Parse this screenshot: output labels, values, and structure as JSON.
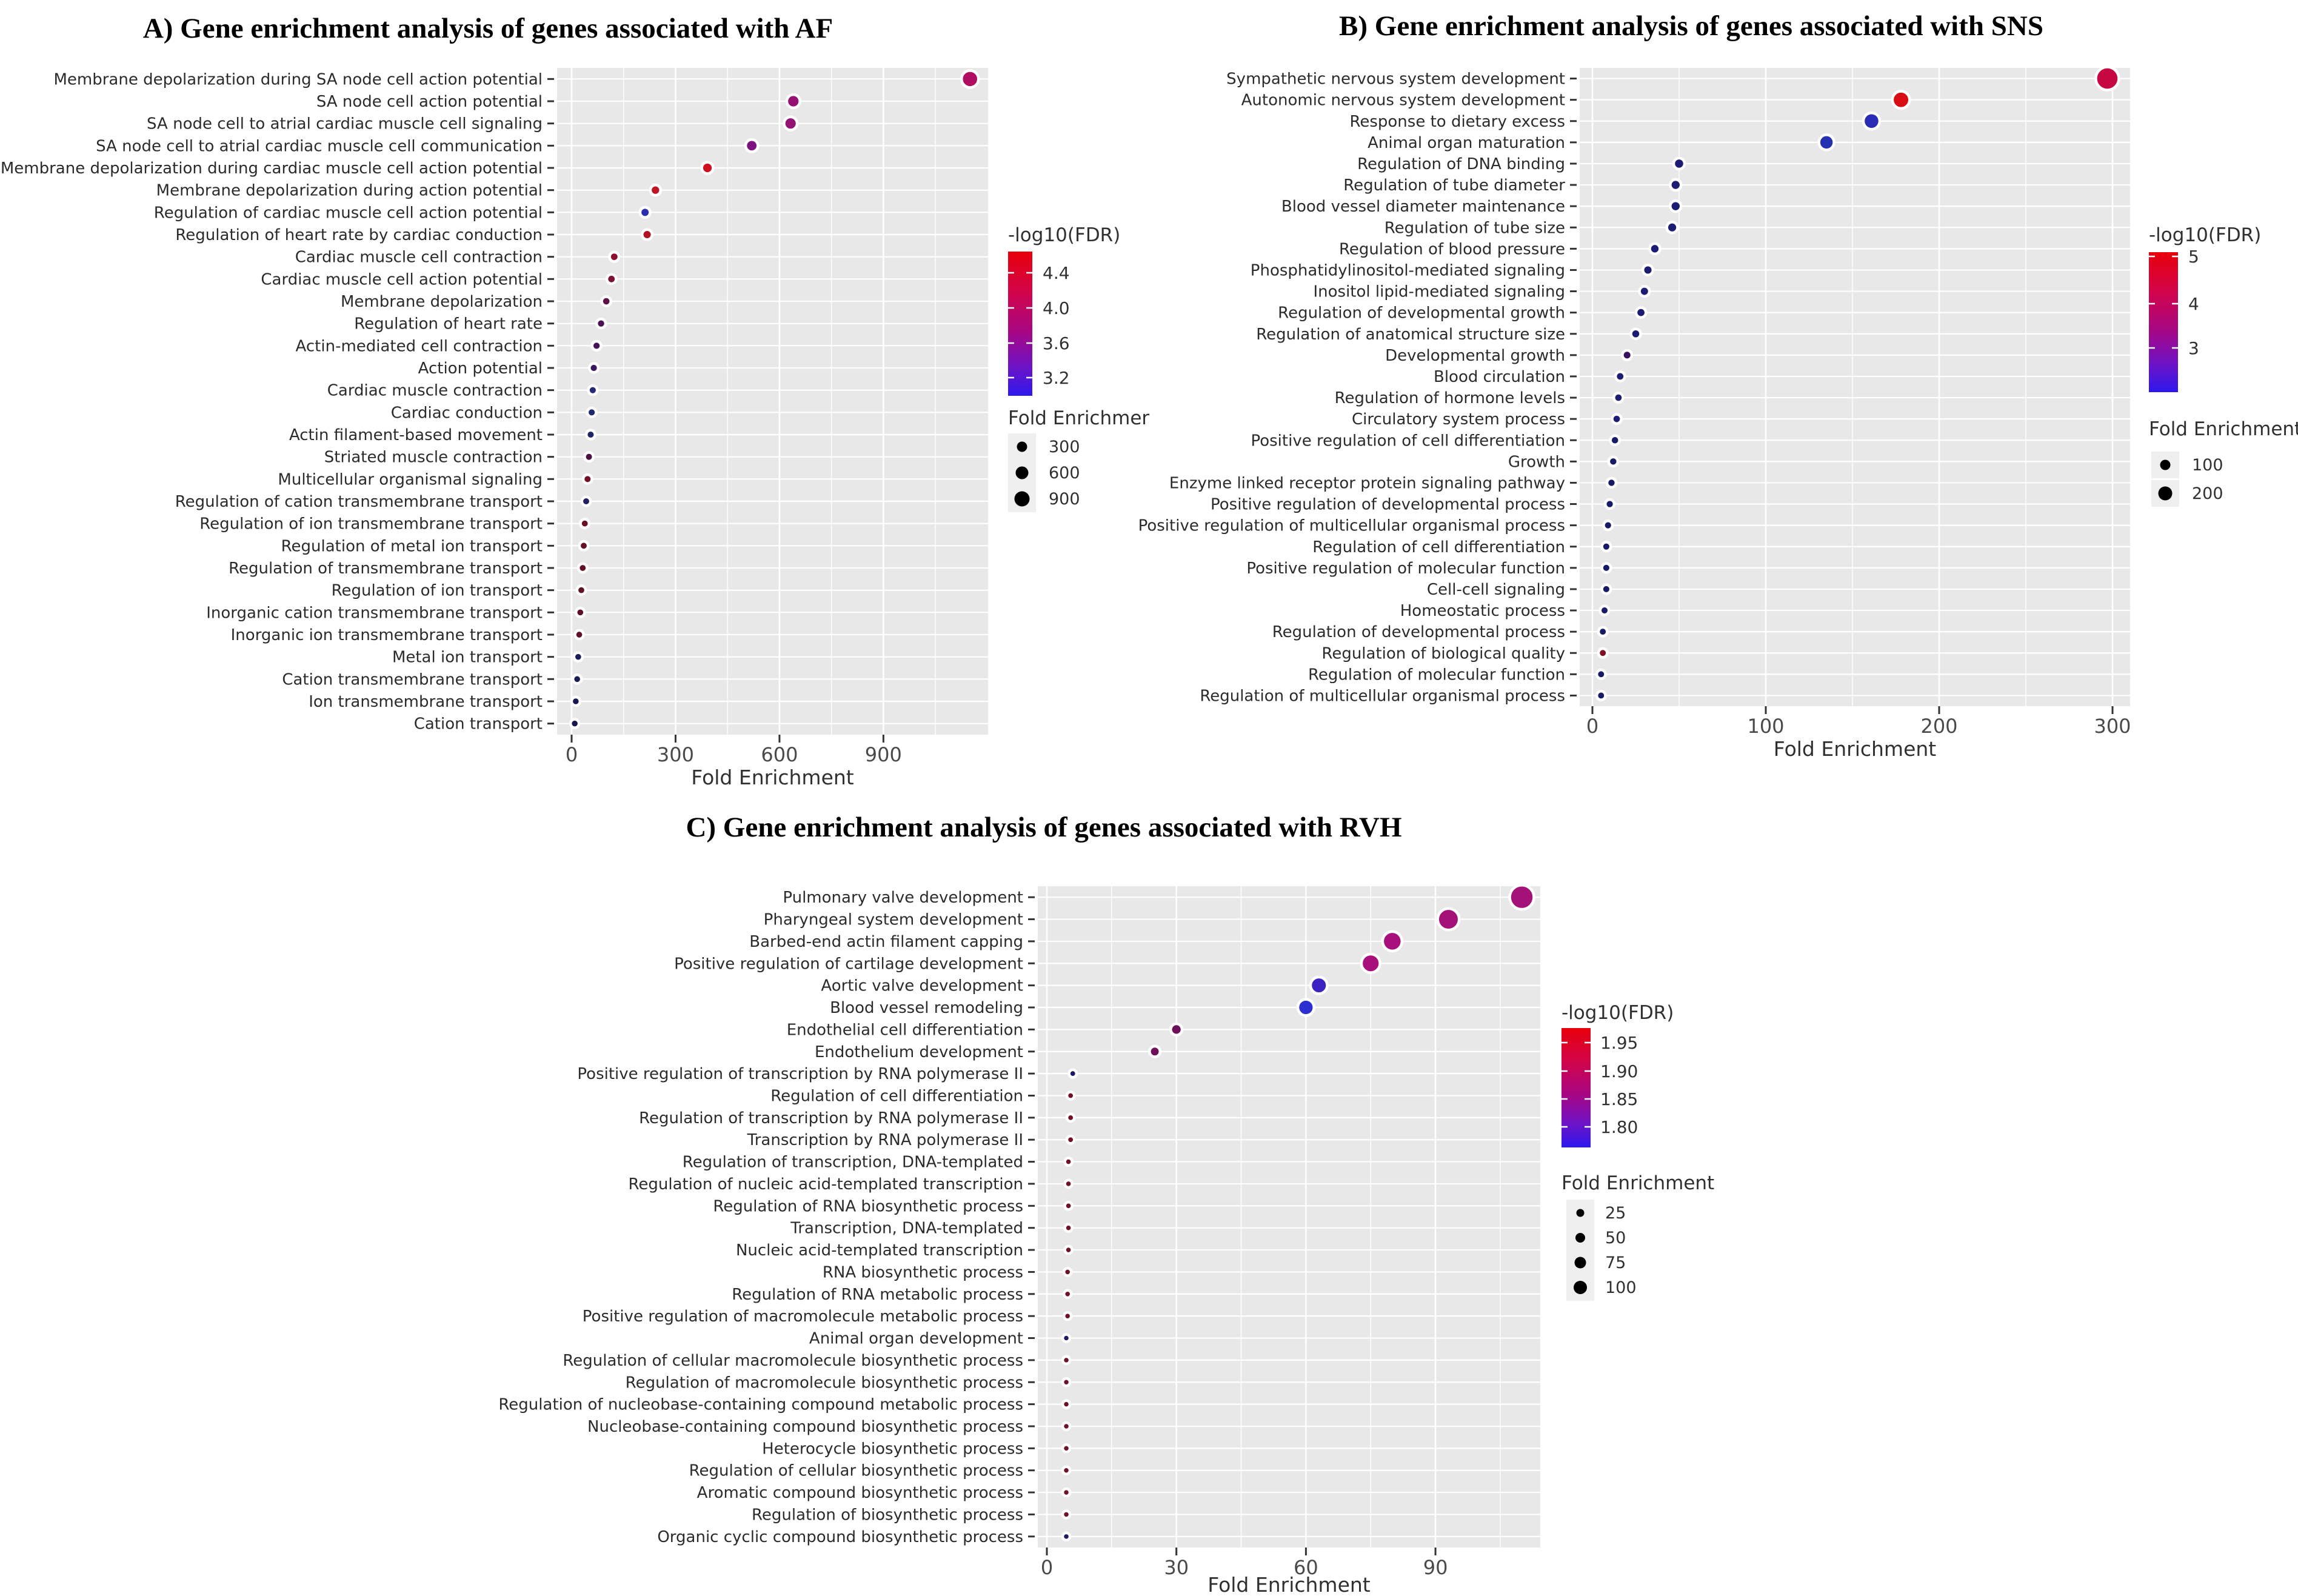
{
  "figure": {
    "description": "Three-panel gene enrichment dot plot figure",
    "background": "#ffffff",
    "plot_background": "#e8e8e8",
    "gridline_color": "#ffffff",
    "colorbar_gradient": [
      "#e8000a",
      "#d2044a",
      "#a80682",
      "#6d13c6",
      "#2d18ee"
    ]
  },
  "chart_data": [
    {
      "type": "scatter",
      "panel": "A",
      "title": "A) Gene enrichment analysis of genes associated with AF",
      "xlabel": "Fold Enrichment",
      "x_ticks": [
        "0",
        "300",
        "600",
        "900"
      ],
      "x_tick_values": [
        0,
        300,
        600,
        900
      ],
      "xlim": [
        0,
        1200
      ],
      "grid": true,
      "legend_colorbar": {
        "title": "-log10(FDR)",
        "ticks": [
          "4.4",
          "4.0",
          "3.6",
          "3.2"
        ]
      },
      "legend_size": {
        "title": "Fold Enrichmer",
        "items": [
          "300",
          "600",
          "900"
        ]
      },
      "points": [
        {
          "label": "Membrane depolarization during SA node cell action potential",
          "fold_enrichment": 1150,
          "color": "#b00d62"
        },
        {
          "label": "SA node cell action potential",
          "fold_enrichment": 640,
          "color": "#951173"
        },
        {
          "label": "SA node cell to atrial cardiac muscle cell signaling",
          "fold_enrichment": 632,
          "color": "#951173"
        },
        {
          "label": "SA node cell to atrial cardiac muscle cell communication",
          "fold_enrichment": 520,
          "color": "#7e1380"
        },
        {
          "label": "Membrane depolarization during cardiac muscle cell action potential",
          "fold_enrichment": 392,
          "color": "#d01020"
        },
        {
          "label": "Membrane depolarization during action potential",
          "fold_enrichment": 242,
          "color": "#c11322"
        },
        {
          "label": "Regulation of cardiac muscle cell action potential",
          "fold_enrichment": 212,
          "color": "#2b2fae"
        },
        {
          "label": "Regulation of heart rate by cardiac conduction",
          "fold_enrichment": 218,
          "color": "#b31222"
        },
        {
          "label": "Cardiac muscle cell contraction",
          "fold_enrichment": 123,
          "color": "#8c102e"
        },
        {
          "label": "Cardiac muscle cell action potential",
          "fold_enrichment": 115,
          "color": "#7c1038"
        },
        {
          "label": "Membrane depolarization",
          "fold_enrichment": 100,
          "color": "#5e1048"
        },
        {
          "label": "Regulation of heart rate",
          "fold_enrichment": 85,
          "color": "#4c1254"
        },
        {
          "label": "Actin-mediated cell contraction",
          "fold_enrichment": 72,
          "color": "#441458"
        },
        {
          "label": "Action potential",
          "fold_enrichment": 64,
          "color": "#3a1560"
        },
        {
          "label": "Cardiac muscle contraction",
          "fold_enrichment": 61,
          "color": "#252a78"
        },
        {
          "label": "Cardiac conduction",
          "fold_enrichment": 58,
          "color": "#20286e"
        },
        {
          "label": "Actin filament-based movement",
          "fold_enrichment": 55,
          "color": "#1e2566"
        },
        {
          "label": "Striated muscle contraction",
          "fold_enrichment": 50,
          "color": "#4e1042"
        },
        {
          "label": "Multicellular organismal signaling",
          "fold_enrichment": 46,
          "color": "#6e1026"
        },
        {
          "label": "Regulation of cation transmembrane transport",
          "fold_enrichment": 42,
          "color": "#232060"
        },
        {
          "label": "Regulation of ion transmembrane transport",
          "fold_enrichment": 38,
          "color": "#681024"
        },
        {
          "label": "Regulation of metal ion transport",
          "fold_enrichment": 35,
          "color": "#661024"
        },
        {
          "label": "Regulation of transmembrane transport",
          "fold_enrichment": 32,
          "color": "#641024"
        },
        {
          "label": "Regulation of ion transport",
          "fold_enrichment": 28,
          "color": "#621024"
        },
        {
          "label": "Inorganic cation transmembrane transport",
          "fold_enrichment": 25,
          "color": "#601026"
        },
        {
          "label": "Inorganic ion transmembrane transport",
          "fold_enrichment": 22,
          "color": "#5e1028"
        },
        {
          "label": "Metal ion transport",
          "fold_enrichment": 19,
          "color": "#1a1e58"
        },
        {
          "label": "Cation transmembrane transport",
          "fold_enrichment": 16,
          "color": "#191c54"
        },
        {
          "label": "Ion transmembrane transport",
          "fold_enrichment": 12,
          "color": "#17194e"
        },
        {
          "label": "Cation transport",
          "fold_enrichment": 9,
          "color": "#15174a"
        }
      ]
    },
    {
      "type": "scatter",
      "panel": "B",
      "title": "B) Gene enrichment analysis of genes associated with SNS",
      "xlabel": "Fold Enrichment",
      "x_ticks": [
        "0",
        "100",
        "200",
        "300"
      ],
      "x_tick_values": [
        0,
        100,
        200,
        300
      ],
      "xlim": [
        0,
        310
      ],
      "grid": true,
      "legend_colorbar": {
        "title": "-log10(FDR)",
        "ticks": [
          "5",
          "4",
          "3"
        ]
      },
      "legend_size": {
        "title": "Fold Enrichment",
        "items": [
          "100",
          "200"
        ]
      },
      "points": [
        {
          "label": "Sympathetic nervous system development",
          "fold_enrichment": 297,
          "color": "#c70742"
        },
        {
          "label": "Autonomic nervous system development",
          "fold_enrichment": 178,
          "color": "#d90e14"
        },
        {
          "label": "Response to dietary excess",
          "fold_enrichment": 161,
          "color": "#2a2cb6"
        },
        {
          "label": "Animal organ maturation",
          "fold_enrichment": 135,
          "color": "#2432b2"
        },
        {
          "label": "Regulation of DNA binding",
          "fold_enrichment": 50,
          "color": "#1b1c72"
        },
        {
          "label": "Regulation of tube diameter",
          "fold_enrichment": 48,
          "color": "#1b1c72"
        },
        {
          "label": "Blood vessel diameter maintenance",
          "fold_enrichment": 48,
          "color": "#1b1c72"
        },
        {
          "label": "Regulation of tube size",
          "fold_enrichment": 46,
          "color": "#1b1c72"
        },
        {
          "label": "Regulation of blood pressure",
          "fold_enrichment": 36,
          "color": "#1b1c72"
        },
        {
          "label": "Phosphatidylinositol-mediated signaling",
          "fold_enrichment": 32,
          "color": "#1b1c72"
        },
        {
          "label": "Inositol lipid-mediated signaling",
          "fold_enrichment": 30,
          "color": "#1b1c72"
        },
        {
          "label": "Regulation of developmental growth",
          "fold_enrichment": 28,
          "color": "#1b1c72"
        },
        {
          "label": "Regulation of anatomical structure size",
          "fold_enrichment": 25,
          "color": "#1b1c72"
        },
        {
          "label": "Developmental growth",
          "fold_enrichment": 20,
          "color": "#3b1162"
        },
        {
          "label": "Blood circulation",
          "fold_enrichment": 16,
          "color": "#1b1c72"
        },
        {
          "label": "Regulation of hormone levels",
          "fold_enrichment": 15,
          "color": "#1b1c72"
        },
        {
          "label": "Circulatory system process",
          "fold_enrichment": 14,
          "color": "#1b1c72"
        },
        {
          "label": "Positive regulation of cell differentiation",
          "fold_enrichment": 13,
          "color": "#171a64"
        },
        {
          "label": "Growth",
          "fold_enrichment": 12,
          "color": "#171a64"
        },
        {
          "label": "Enzyme linked receptor protein signaling pathway",
          "fold_enrichment": 11,
          "color": "#171a64"
        },
        {
          "label": "Positive regulation of developmental process",
          "fold_enrichment": 10,
          "color": "#171a64"
        },
        {
          "label": "Positive regulation of multicellular organismal process",
          "fold_enrichment": 9,
          "color": "#171a64"
        },
        {
          "label": "Regulation of cell differentiation",
          "fold_enrichment": 8,
          "color": "#171a64"
        },
        {
          "label": "Positive regulation of molecular function",
          "fold_enrichment": 8,
          "color": "#171a64"
        },
        {
          "label": "Cell-cell signaling",
          "fold_enrichment": 8,
          "color": "#171a64"
        },
        {
          "label": "Homeostatic process",
          "fold_enrichment": 7,
          "color": "#171a64"
        },
        {
          "label": "Regulation of developmental process",
          "fold_enrichment": 6,
          "color": "#171a64"
        },
        {
          "label": "Regulation of biological quality",
          "fold_enrichment": 6,
          "color": "#7e1022"
        },
        {
          "label": "Regulation of molecular function",
          "fold_enrichment": 5,
          "color": "#171a64"
        },
        {
          "label": "Regulation of multicellular organismal process",
          "fold_enrichment": 5,
          "color": "#171a64"
        }
      ]
    },
    {
      "type": "scatter",
      "panel": "C",
      "title": "C) Gene enrichment analysis of genes associated with RVH",
      "xlabel": "Fold Enrichment",
      "x_ticks": [
        "0",
        "30",
        "60",
        "90"
      ],
      "x_tick_values": [
        0,
        30,
        60,
        90
      ],
      "xlim": [
        0,
        114
      ],
      "grid": true,
      "legend_colorbar": {
        "title": "-log10(FDR)",
        "ticks": [
          "1.95",
          "1.90",
          "1.85",
          "1.80"
        ]
      },
      "legend_size": {
        "title": "Fold Enrichment",
        "items": [
          "25",
          "50",
          "75",
          "100"
        ]
      },
      "points": [
        {
          "label": "Pulmonary valve development",
          "fold_enrichment": 110,
          "color": "#a31179"
        },
        {
          "label": "Pharyngeal system development",
          "fold_enrichment": 93,
          "color": "#a31179"
        },
        {
          "label": "Barbed-end actin filament capping",
          "fold_enrichment": 80,
          "color": "#a80f7c"
        },
        {
          "label": "Positive regulation of cartilage development",
          "fold_enrichment": 75,
          "color": "#a80f7c"
        },
        {
          "label": "Aortic valve development",
          "fold_enrichment": 63,
          "color": "#3e23c2"
        },
        {
          "label": "Blood vessel remodeling",
          "fold_enrichment": 60,
          "color": "#2c2fd2"
        },
        {
          "label": "Endothelial cell differentiation",
          "fold_enrichment": 30,
          "color": "#6e1058"
        },
        {
          "label": "Endothelium development",
          "fold_enrichment": 25,
          "color": "#6e1058"
        },
        {
          "label": "Positive regulation of transcription by RNA polymerase II",
          "fold_enrichment": 6,
          "color": "#1c1964"
        },
        {
          "label": "Regulation of cell differentiation",
          "fold_enrichment": 5.5,
          "color": "#701026"
        },
        {
          "label": "Regulation of transcription by RNA polymerase II",
          "fold_enrichment": 5.5,
          "color": "#701026"
        },
        {
          "label": "Transcription by RNA polymerase II",
          "fold_enrichment": 5.5,
          "color": "#701026"
        },
        {
          "label": "Regulation of transcription, DNA-templated",
          "fold_enrichment": 5,
          "color": "#701026"
        },
        {
          "label": "Regulation of nucleic acid-templated transcription",
          "fold_enrichment": 5,
          "color": "#701026"
        },
        {
          "label": "Regulation of RNA biosynthetic process",
          "fold_enrichment": 5,
          "color": "#701026"
        },
        {
          "label": "Transcription, DNA-templated",
          "fold_enrichment": 5,
          "color": "#701026"
        },
        {
          "label": "Nucleic acid-templated transcription",
          "fold_enrichment": 5,
          "color": "#701026"
        },
        {
          "label": "RNA biosynthetic process",
          "fold_enrichment": 4.8,
          "color": "#701026"
        },
        {
          "label": "Regulation of RNA metabolic process",
          "fold_enrichment": 4.8,
          "color": "#701026"
        },
        {
          "label": "Positive regulation of macromolecule metabolic process",
          "fold_enrichment": 4.8,
          "color": "#701026"
        },
        {
          "label": "Animal organ development",
          "fold_enrichment": 4.5,
          "color": "#1b1b62"
        },
        {
          "label": "Regulation of cellular macromolecule biosynthetic process",
          "fold_enrichment": 4.5,
          "color": "#701026"
        },
        {
          "label": "Regulation of macromolecule biosynthetic process",
          "fold_enrichment": 4.5,
          "color": "#701026"
        },
        {
          "label": "Regulation of nucleobase-containing compound metabolic process",
          "fold_enrichment": 4.5,
          "color": "#701026"
        },
        {
          "label": "Nucleobase-containing compound biosynthetic process",
          "fold_enrichment": 4.5,
          "color": "#701026"
        },
        {
          "label": "Heterocycle biosynthetic process",
          "fold_enrichment": 4.5,
          "color": "#701026"
        },
        {
          "label": "Regulation of cellular biosynthetic process",
          "fold_enrichment": 4.5,
          "color": "#701026"
        },
        {
          "label": "Aromatic compound biosynthetic process",
          "fold_enrichment": 4.5,
          "color": "#701026"
        },
        {
          "label": "Regulation of biosynthetic process",
          "fold_enrichment": 4.5,
          "color": "#701026"
        },
        {
          "label": "Organic cyclic compound biosynthetic process",
          "fold_enrichment": 4.5,
          "color": "#1b1b62"
        }
      ]
    }
  ]
}
